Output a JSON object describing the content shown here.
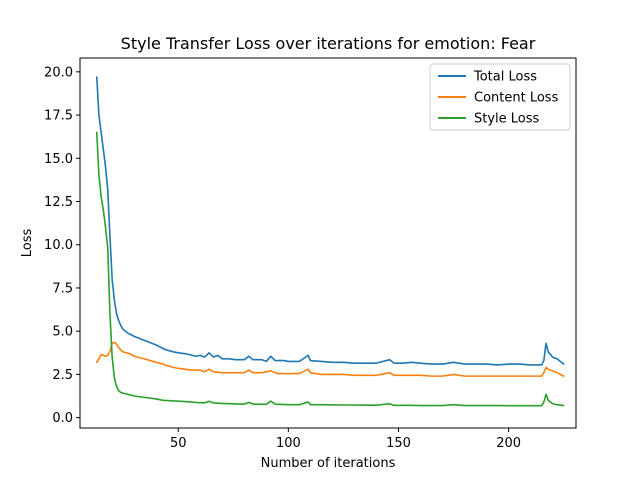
{
  "chart_data": {
    "type": "line",
    "title": "Style Transfer Loss over iterations for emotion: Fear",
    "xlabel": "Number of iterations",
    "ylabel": "Loss",
    "xlim": [
      5.4,
      230.6
    ],
    "ylim": [
      -0.6,
      20.8
    ],
    "xticks": [
      50,
      100,
      150,
      200
    ],
    "xtick_labels": [
      "50",
      "100",
      "150",
      "200"
    ],
    "yticks": [
      0,
      2.5,
      5,
      7.5,
      10,
      12.5,
      15,
      17.5,
      20
    ],
    "ytick_labels": [
      "0.0",
      "2.5",
      "5.0",
      "7.5",
      "10.0",
      "12.5",
      "15.0",
      "17.5",
      "20.0"
    ],
    "grid": false,
    "legend_position": "top-right",
    "series": [
      {
        "name": "Total Loss",
        "color": "#1f77b4",
        "points": [
          [
            13,
            19.7
          ],
          [
            14,
            17.5
          ],
          [
            15,
            16.5
          ],
          [
            16,
            15.5
          ],
          [
            17,
            14.5
          ],
          [
            18,
            13.2
          ],
          [
            19,
            10.5
          ],
          [
            20,
            8.0
          ],
          [
            21,
            6.8
          ],
          [
            22,
            6.0
          ],
          [
            23,
            5.6
          ],
          [
            24,
            5.3
          ],
          [
            25,
            5.1
          ],
          [
            27,
            4.9
          ],
          [
            30,
            4.7
          ],
          [
            33,
            4.55
          ],
          [
            36,
            4.4
          ],
          [
            40,
            4.2
          ],
          [
            43,
            4.0
          ],
          [
            45,
            3.9
          ],
          [
            48,
            3.8
          ],
          [
            50,
            3.75
          ],
          [
            53,
            3.7
          ],
          [
            55,
            3.65
          ],
          [
            58,
            3.55
          ],
          [
            60,
            3.6
          ],
          [
            62,
            3.5
          ],
          [
            64,
            3.75
          ],
          [
            66,
            3.5
          ],
          [
            68,
            3.6
          ],
          [
            70,
            3.4
          ],
          [
            73,
            3.4
          ],
          [
            76,
            3.35
          ],
          [
            80,
            3.35
          ],
          [
            82,
            3.55
          ],
          [
            84,
            3.35
          ],
          [
            88,
            3.35
          ],
          [
            90,
            3.25
          ],
          [
            92,
            3.55
          ],
          [
            94,
            3.3
          ],
          [
            98,
            3.3
          ],
          [
            100,
            3.25
          ],
          [
            105,
            3.25
          ],
          [
            109,
            3.6
          ],
          [
            110,
            3.3
          ],
          [
            115,
            3.25
          ],
          [
            120,
            3.2
          ],
          [
            125,
            3.2
          ],
          [
            130,
            3.15
          ],
          [
            135,
            3.15
          ],
          [
            140,
            3.15
          ],
          [
            146,
            3.35
          ],
          [
            148,
            3.15
          ],
          [
            152,
            3.15
          ],
          [
            156,
            3.2
          ],
          [
            160,
            3.15
          ],
          [
            165,
            3.1
          ],
          [
            170,
            3.1
          ],
          [
            175,
            3.2
          ],
          [
            180,
            3.1
          ],
          [
            185,
            3.1
          ],
          [
            190,
            3.1
          ],
          [
            195,
            3.05
          ],
          [
            200,
            3.1
          ],
          [
            205,
            3.1
          ],
          [
            210,
            3.05
          ],
          [
            215,
            3.05
          ],
          [
            216,
            3.3
          ],
          [
            217,
            4.3
          ],
          [
            218,
            3.8
          ],
          [
            220,
            3.5
          ],
          [
            222,
            3.4
          ],
          [
            225,
            3.1
          ]
        ]
      },
      {
        "name": "Content Loss",
        "color": "#ff7f0e",
        "points": [
          [
            13,
            3.2
          ],
          [
            14,
            3.4
          ],
          [
            15,
            3.65
          ],
          [
            17,
            3.55
          ],
          [
            18,
            3.6
          ],
          [
            19,
            3.85
          ],
          [
            20,
            4.3
          ],
          [
            21,
            4.35
          ],
          [
            22,
            4.25
          ],
          [
            23,
            4.05
          ],
          [
            24,
            3.9
          ],
          [
            25,
            3.8
          ],
          [
            28,
            3.7
          ],
          [
            30,
            3.55
          ],
          [
            33,
            3.45
          ],
          [
            36,
            3.35
          ],
          [
            40,
            3.2
          ],
          [
            43,
            3.1
          ],
          [
            45,
            3.0
          ],
          [
            48,
            2.9
          ],
          [
            50,
            2.85
          ],
          [
            53,
            2.8
          ],
          [
            56,
            2.75
          ],
          [
            60,
            2.75
          ],
          [
            62,
            2.65
          ],
          [
            64,
            2.8
          ],
          [
            66,
            2.65
          ],
          [
            70,
            2.6
          ],
          [
            75,
            2.6
          ],
          [
            80,
            2.6
          ],
          [
            82,
            2.75
          ],
          [
            84,
            2.6
          ],
          [
            88,
            2.6
          ],
          [
            92,
            2.7
          ],
          [
            95,
            2.55
          ],
          [
            100,
            2.55
          ],
          [
            105,
            2.55
          ],
          [
            109,
            2.8
          ],
          [
            110,
            2.6
          ],
          [
            115,
            2.5
          ],
          [
            120,
            2.5
          ],
          [
            125,
            2.5
          ],
          [
            130,
            2.45
          ],
          [
            135,
            2.45
          ],
          [
            140,
            2.45
          ],
          [
            146,
            2.6
          ],
          [
            148,
            2.45
          ],
          [
            155,
            2.45
          ],
          [
            160,
            2.45
          ],
          [
            165,
            2.4
          ],
          [
            170,
            2.4
          ],
          [
            175,
            2.5
          ],
          [
            180,
            2.4
          ],
          [
            185,
            2.4
          ],
          [
            190,
            2.4
          ],
          [
            195,
            2.4
          ],
          [
            200,
            2.4
          ],
          [
            205,
            2.4
          ],
          [
            210,
            2.4
          ],
          [
            215,
            2.4
          ],
          [
            216,
            2.6
          ],
          [
            217,
            2.9
          ],
          [
            218,
            2.8
          ],
          [
            220,
            2.7
          ],
          [
            222,
            2.6
          ],
          [
            225,
            2.4
          ]
        ]
      },
      {
        "name": "Style Loss",
        "color": "#2ca02c",
        "points": [
          [
            13,
            16.5
          ],
          [
            14,
            14.0
          ],
          [
            15,
            12.8
          ],
          [
            16,
            12.0
          ],
          [
            17,
            11.0
          ],
          [
            18,
            9.8
          ],
          [
            19,
            6.0
          ],
          [
            20,
            3.5
          ],
          [
            21,
            2.3
          ],
          [
            22,
            1.8
          ],
          [
            23,
            1.55
          ],
          [
            24,
            1.45
          ],
          [
            26,
            1.38
          ],
          [
            28,
            1.32
          ],
          [
            30,
            1.25
          ],
          [
            33,
            1.2
          ],
          [
            36,
            1.15
          ],
          [
            40,
            1.08
          ],
          [
            43,
            1.0
          ],
          [
            46,
            0.98
          ],
          [
            50,
            0.95
          ],
          [
            54,
            0.92
          ],
          [
            58,
            0.88
          ],
          [
            62,
            0.85
          ],
          [
            64,
            0.95
          ],
          [
            66,
            0.85
          ],
          [
            70,
            0.82
          ],
          [
            75,
            0.8
          ],
          [
            80,
            0.78
          ],
          [
            82,
            0.88
          ],
          [
            84,
            0.78
          ],
          [
            90,
            0.77
          ],
          [
            92,
            0.95
          ],
          [
            94,
            0.78
          ],
          [
            100,
            0.75
          ],
          [
            105,
            0.75
          ],
          [
            109,
            0.9
          ],
          [
            110,
            0.75
          ],
          [
            115,
            0.75
          ],
          [
            120,
            0.74
          ],
          [
            125,
            0.73
          ],
          [
            130,
            0.73
          ],
          [
            135,
            0.72
          ],
          [
            140,
            0.72
          ],
          [
            146,
            0.8
          ],
          [
            148,
            0.71
          ],
          [
            155,
            0.71
          ],
          [
            160,
            0.7
          ],
          [
            165,
            0.7
          ],
          [
            170,
            0.7
          ],
          [
            175,
            0.75
          ],
          [
            180,
            0.7
          ],
          [
            185,
            0.7
          ],
          [
            190,
            0.7
          ],
          [
            195,
            0.7
          ],
          [
            200,
            0.69
          ],
          [
            205,
            0.69
          ],
          [
            210,
            0.69
          ],
          [
            215,
            0.69
          ],
          [
            216,
            0.9
          ],
          [
            217,
            1.35
          ],
          [
            218,
            1.0
          ],
          [
            220,
            0.8
          ],
          [
            222,
            0.75
          ],
          [
            225,
            0.7
          ]
        ]
      }
    ]
  }
}
